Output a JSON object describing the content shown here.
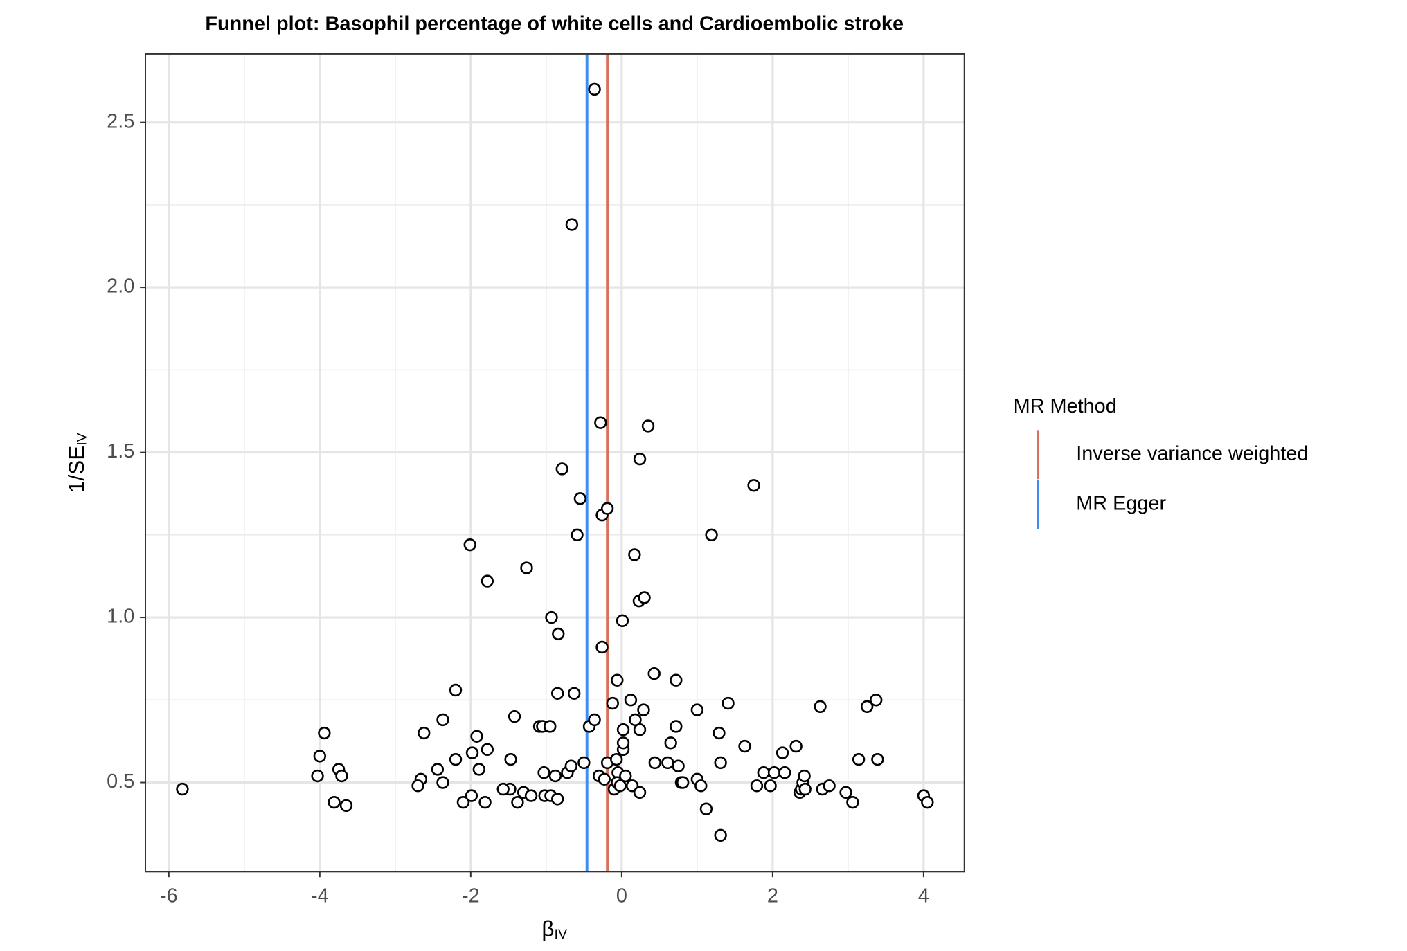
{
  "chart_data": {
    "type": "scatter",
    "title": "Funnel plot: Basophil percentage of white cells and Cardioembolic stroke",
    "xlabel": {
      "text": "β",
      "sub": "IV"
    },
    "ylabel": {
      "text": "1/SE",
      "sub": "IV"
    },
    "marker_color": "#000000",
    "x": [
      -5.82,
      -3.94,
      -4.0,
      -4.03,
      -3.75,
      -3.71,
      -3.81,
      -3.65,
      -2.62,
      -2.66,
      -2.7,
      -2.37,
      -2.44,
      -2.37,
      -2.2,
      -2.2,
      -2.1,
      -2.01,
      -1.98,
      -1.99,
      -1.92,
      -1.89,
      -1.78,
      -1.78,
      -1.81,
      -1.42,
      -1.47,
      -1.48,
      -1.57,
      -1.38,
      -1.3,
      -1.26,
      -1.2,
      -1.09,
      -1.05,
      -1.03,
      -1.02,
      -0.95,
      -0.93,
      -0.94,
      -0.88,
      -0.85,
      -0.84,
      -0.85,
      -0.79,
      -0.72,
      -0.67,
      -0.66,
      -0.63,
      -0.59,
      -0.55,
      -0.5,
      -0.43,
      -0.36,
      -0.36,
      -0.3,
      -0.28,
      -0.26,
      -0.26,
      -0.23,
      -0.19,
      -0.19,
      -0.12,
      -0.1,
      -0.07,
      -0.06,
      -0.05,
      -0.06,
      -0.02,
      0.01,
      0.02,
      0.02,
      0.02,
      0.05,
      0.12,
      0.14,
      0.17,
      0.18,
      0.23,
      0.24,
      0.24,
      0.24,
      0.29,
      0.3,
      0.35,
      0.43,
      0.44,
      0.61,
      0.65,
      0.72,
      0.72,
      0.75,
      0.79,
      0.81,
      1.0,
      1.0,
      1.05,
      1.12,
      1.19,
      1.29,
      1.31,
      1.31,
      1.41,
      1.63,
      1.75,
      1.79,
      1.88,
      1.97,
      2.02,
      2.13,
      2.16,
      2.31,
      2.36,
      2.38,
      2.4,
      2.42,
      2.43,
      2.63,
      2.66,
      2.75,
      2.97,
      3.06,
      3.14,
      3.25,
      3.37,
      3.39,
      4.0,
      4.05
    ],
    "y": [
      0.48,
      0.65,
      0.58,
      0.52,
      0.54,
      0.52,
      0.44,
      0.43,
      0.65,
      0.51,
      0.49,
      0.69,
      0.54,
      0.5,
      0.78,
      0.57,
      0.44,
      1.22,
      0.59,
      0.46,
      0.64,
      0.54,
      1.11,
      0.6,
      0.44,
      0.7,
      0.57,
      0.48,
      0.48,
      0.44,
      0.47,
      1.15,
      0.46,
      0.67,
      0.67,
      0.53,
      0.46,
      0.67,
      1.0,
      0.46,
      0.52,
      0.77,
      0.95,
      0.45,
      1.45,
      0.53,
      0.55,
      2.19,
      0.77,
      1.25,
      1.36,
      0.56,
      0.67,
      2.6,
      0.69,
      0.52,
      1.59,
      1.31,
      0.91,
      0.51,
      1.33,
      0.56,
      0.74,
      0.48,
      0.57,
      0.81,
      0.53,
      0.5,
      0.49,
      0.99,
      0.66,
      0.6,
      0.62,
      0.52,
      0.75,
      0.49,
      1.19,
      0.69,
      1.05,
      1.48,
      0.66,
      0.47,
      0.72,
      1.06,
      1.58,
      0.83,
      0.56,
      0.56,
      0.62,
      0.81,
      0.67,
      0.55,
      0.5,
      0.5,
      0.72,
      0.51,
      0.49,
      0.42,
      1.25,
      0.65,
      0.56,
      0.34,
      0.74,
      0.61,
      1.4,
      0.49,
      0.53,
      0.49,
      0.53,
      0.59,
      0.53,
      0.61,
      0.47,
      0.48,
      0.5,
      0.52,
      0.48,
      0.73,
      0.48,
      0.49,
      0.47,
      0.44,
      0.57,
      0.73,
      0.75,
      0.57,
      0.46,
      0.44
    ],
    "xlim": [
      -6.31,
      4.54
    ],
    "ylim": [
      0.23,
      2.707
    ],
    "xticks": [
      -6,
      -4,
      -2,
      0,
      2,
      4
    ],
    "yticks": [
      0.5,
      {
        "value": 1,
        "label": "1.0"
      },
      1.5,
      {
        "value": 2,
        "label": "2.0"
      },
      2.5
    ],
    "grid": true,
    "minor_grid": true,
    "vlines": [
      {
        "name": "Inverse variance weighted",
        "color": "#d9705a",
        "value": -0.19
      },
      {
        "name": "MR Egger",
        "color": "#3d8ef0",
        "value": -0.46
      }
    ],
    "legend": {
      "title": "MR Method",
      "position": "right"
    }
  }
}
